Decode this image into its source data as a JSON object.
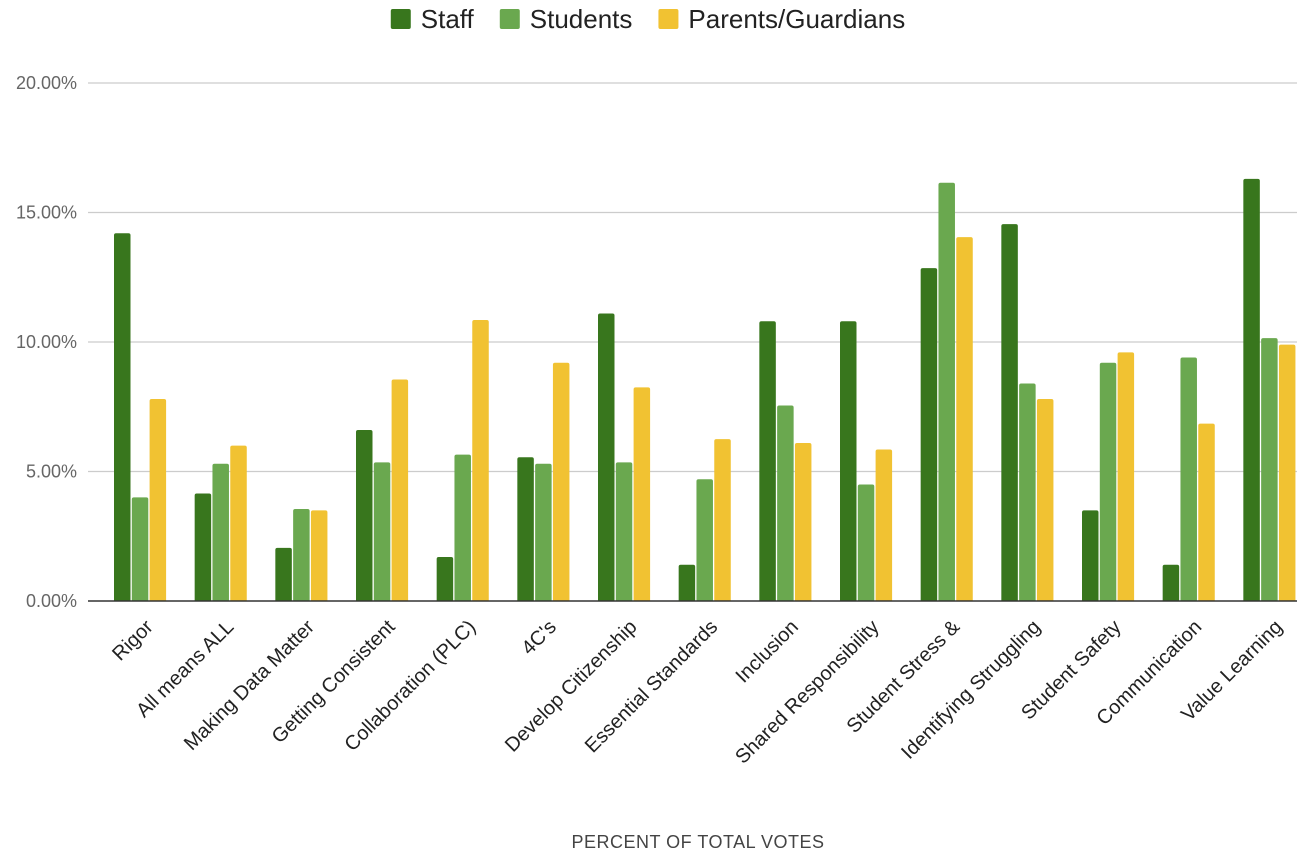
{
  "chart_data": {
    "type": "bar",
    "title": "",
    "xlabel": "PERCENT OF TOTAL VOTES",
    "ylabel": "",
    "ylim": [
      0,
      20
    ],
    "y_ticks": [
      0,
      5,
      10,
      15,
      20
    ],
    "y_tick_labels": [
      "0.00%",
      "5.00%",
      "10.00%",
      "15.00%",
      "20.00%"
    ],
    "grid": true,
    "legend_position": "top",
    "categories": [
      "Rigor",
      "All means ALL",
      "Making Data Matter",
      "Getting Consistent",
      "Collaboration (PLC)",
      "4C's",
      "Develop Citizenship",
      "Essential Standards",
      "Inclusion",
      "Shared Responsibility",
      "Student Stress &",
      "Identifying Struggling",
      "Student Safety",
      "Communication",
      "Value Learning"
    ],
    "series": [
      {
        "name": "Staff",
        "color": "#38761d",
        "values": [
          14.2,
          4.15,
          2.05,
          6.6,
          1.7,
          5.55,
          11.1,
          1.4,
          10.8,
          10.8,
          12.85,
          14.55,
          3.5,
          1.4,
          16.3
        ]
      },
      {
        "name": "Students",
        "color": "#6aa84f",
        "values": [
          4.0,
          5.3,
          3.55,
          5.35,
          5.65,
          5.3,
          5.35,
          4.7,
          7.55,
          4.5,
          16.15,
          8.4,
          9.2,
          9.4,
          10.15
        ]
      },
      {
        "name": "Parents/Guardians",
        "color": "#f1c232",
        "values": [
          7.8,
          6.0,
          3.5,
          8.55,
          10.85,
          9.2,
          8.25,
          6.25,
          6.1,
          5.85,
          14.05,
          7.8,
          9.6,
          6.85,
          9.9
        ]
      }
    ]
  }
}
